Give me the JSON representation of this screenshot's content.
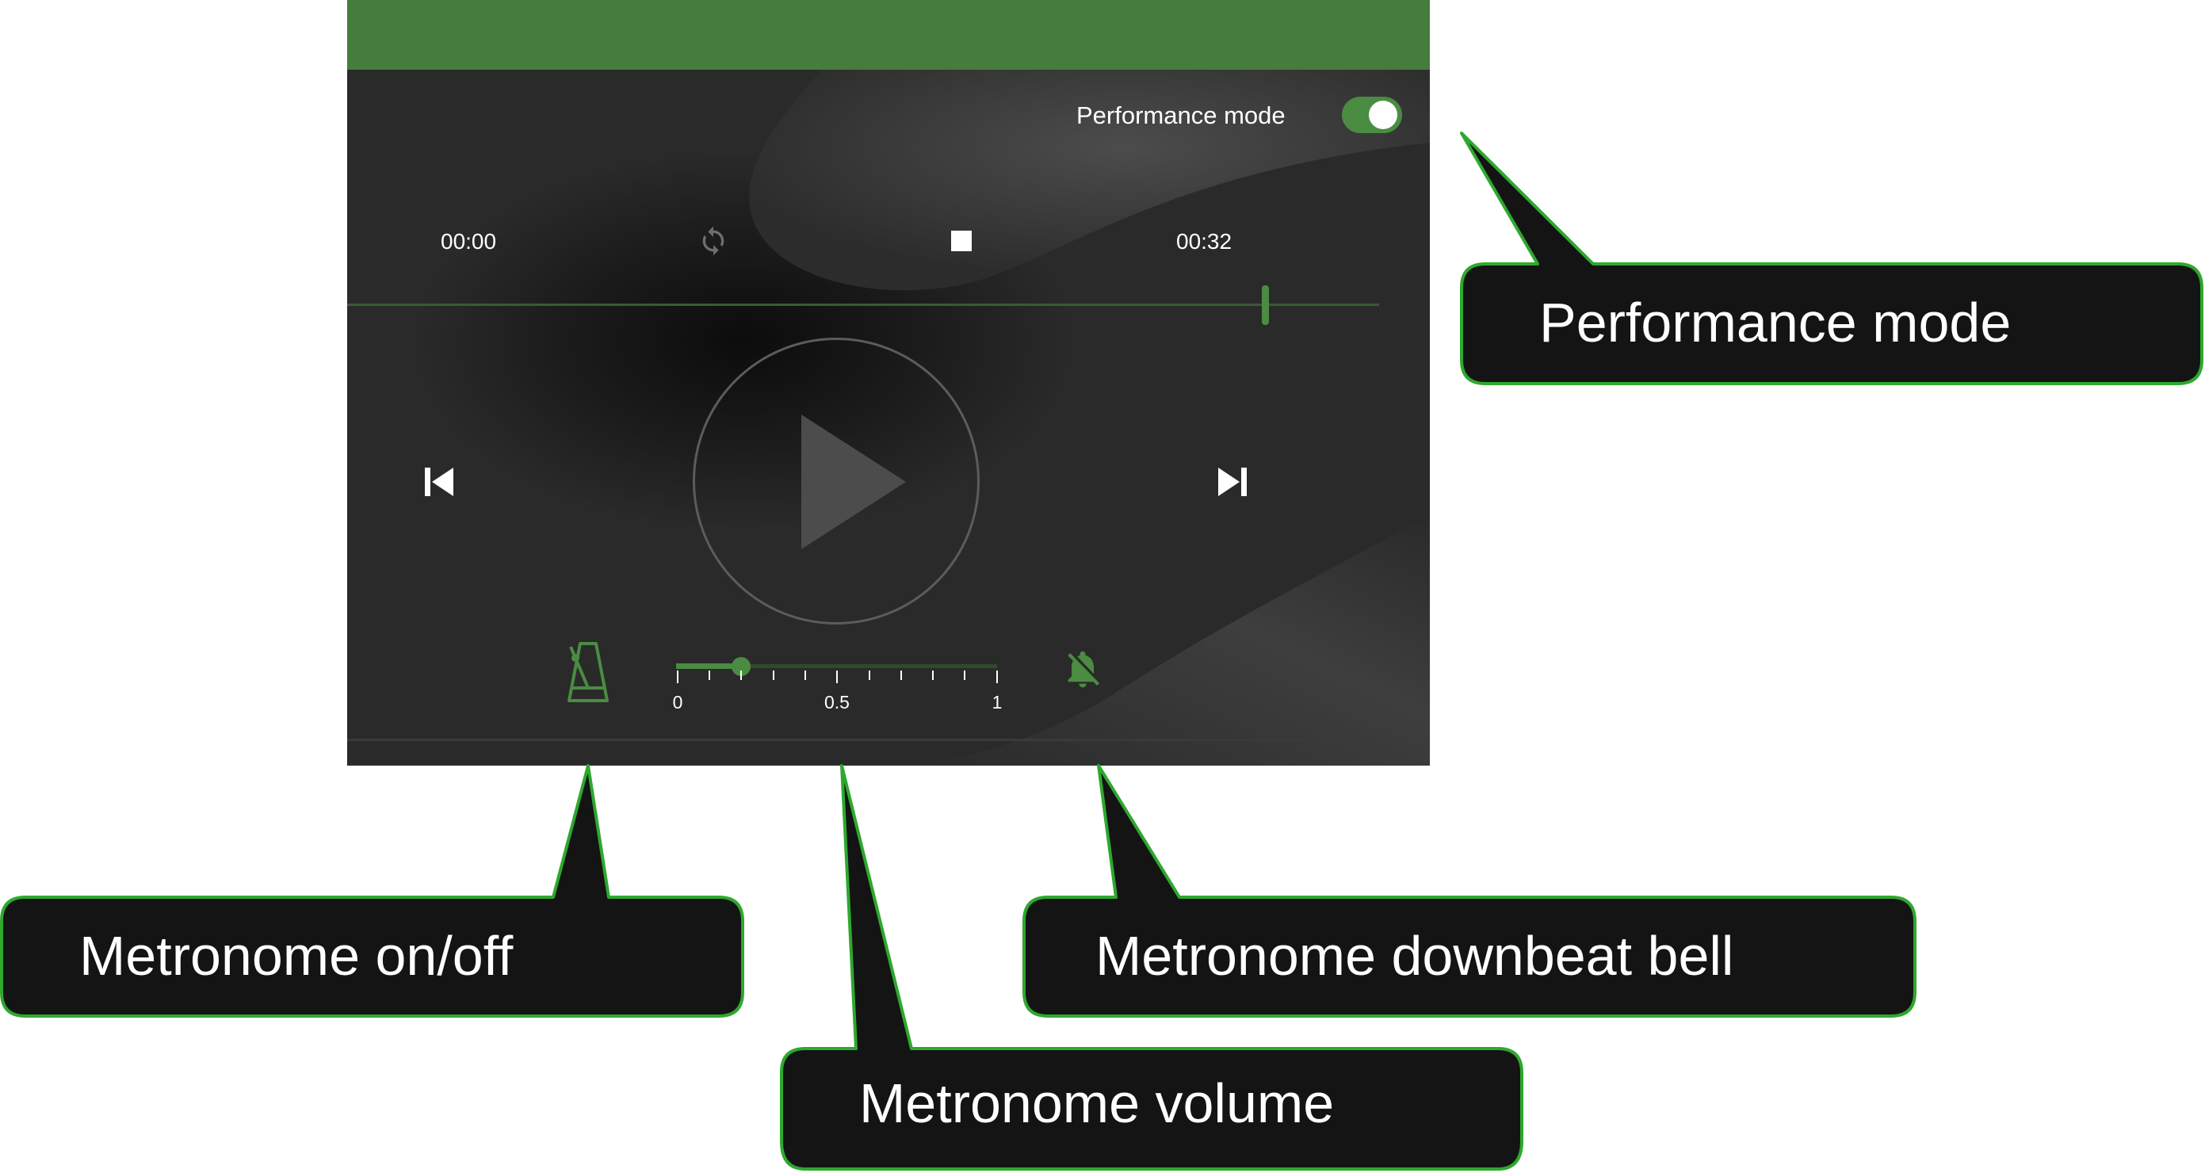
{
  "player": {
    "performance_mode_label": "Performance mode",
    "performance_mode_on": true,
    "time_current": "00:00",
    "time_total": "00:32",
    "metronome_volume": {
      "value": 0.2,
      "min": "0",
      "mid": "0.5",
      "max": "1"
    }
  },
  "callouts": {
    "performance_mode": "Performance mode",
    "metronome_on_off": "Metronome on/off",
    "metronome_volume": "Metronome volume",
    "metronome_downbeat_bell": "Metronome downbeat bell"
  },
  "colors": {
    "accent_green": "#467c3c",
    "callout_fill": "#141414",
    "callout_border": "#2ea82e",
    "panel_bg": "#2a2a2a"
  },
  "icons": {
    "loop": "loop-icon",
    "stop": "stop-icon",
    "previous": "skip-previous-icon",
    "next": "skip-next-icon",
    "play": "play-icon",
    "metronome": "metronome-icon",
    "bell_off": "bell-off-icon"
  }
}
